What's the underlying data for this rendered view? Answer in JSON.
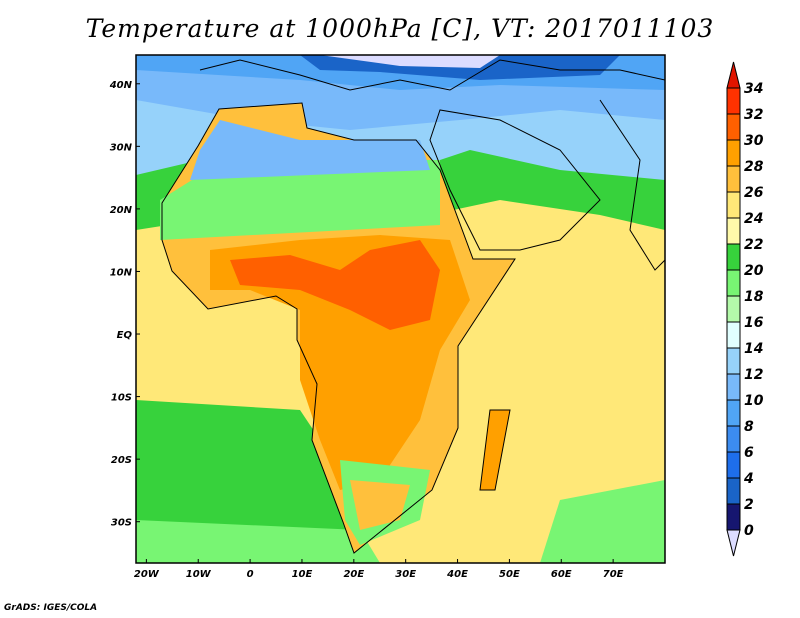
{
  "title": "Temperature at 1000hPa [C], VT: 2017011103",
  "footer": "GrADS: IGES/COLA",
  "map": {
    "lon_range": [
      -22,
      80
    ],
    "lat_range": [
      -36.6,
      44.6
    ],
    "x_ticks": [
      {
        "lon": -20,
        "label": "20W"
      },
      {
        "lon": -10,
        "label": "10W"
      },
      {
        "lon": 0,
        "label": "0"
      },
      {
        "lon": 10,
        "label": "10E"
      },
      {
        "lon": 20,
        "label": "20E"
      },
      {
        "lon": 30,
        "label": "30E"
      },
      {
        "lon": 40,
        "label": "40E"
      },
      {
        "lon": 50,
        "label": "50E"
      },
      {
        "lon": 60,
        "label": "60E"
      },
      {
        "lon": 70,
        "label": "70E"
      }
    ],
    "y_ticks": [
      {
        "lat": 40,
        "label": "40N"
      },
      {
        "lat": 30,
        "label": "30N"
      },
      {
        "lat": 20,
        "label": "20N"
      },
      {
        "lat": 10,
        "label": "10N"
      },
      {
        "lat": 0,
        "label": "EQ"
      },
      {
        "lat": -10,
        "label": "10S"
      },
      {
        "lat": -20,
        "label": "20S"
      },
      {
        "lat": -30,
        "label": "30S"
      }
    ]
  },
  "colorbar": {
    "labels": [
      "0",
      "2",
      "4",
      "6",
      "8",
      "10",
      "12",
      "14",
      "16",
      "18",
      "20",
      "22",
      "24",
      "26",
      "28",
      "30",
      "32",
      "34"
    ],
    "colors": [
      "#161670",
      "#1a64c8",
      "#1e6eeb",
      "#3c8cf0",
      "#50a5f5",
      "#78b9fa",
      "#96d2fa",
      "#e1ffff",
      "#b4faaa",
      "#78f573",
      "#37d23c",
      "#fffaaa",
      "#ffe878",
      "#ffc03c",
      "#ffa000",
      "#ff6000",
      "#ff3200"
    ],
    "under_color": "#dcdcff",
    "over_color": "#e11400"
  }
}
